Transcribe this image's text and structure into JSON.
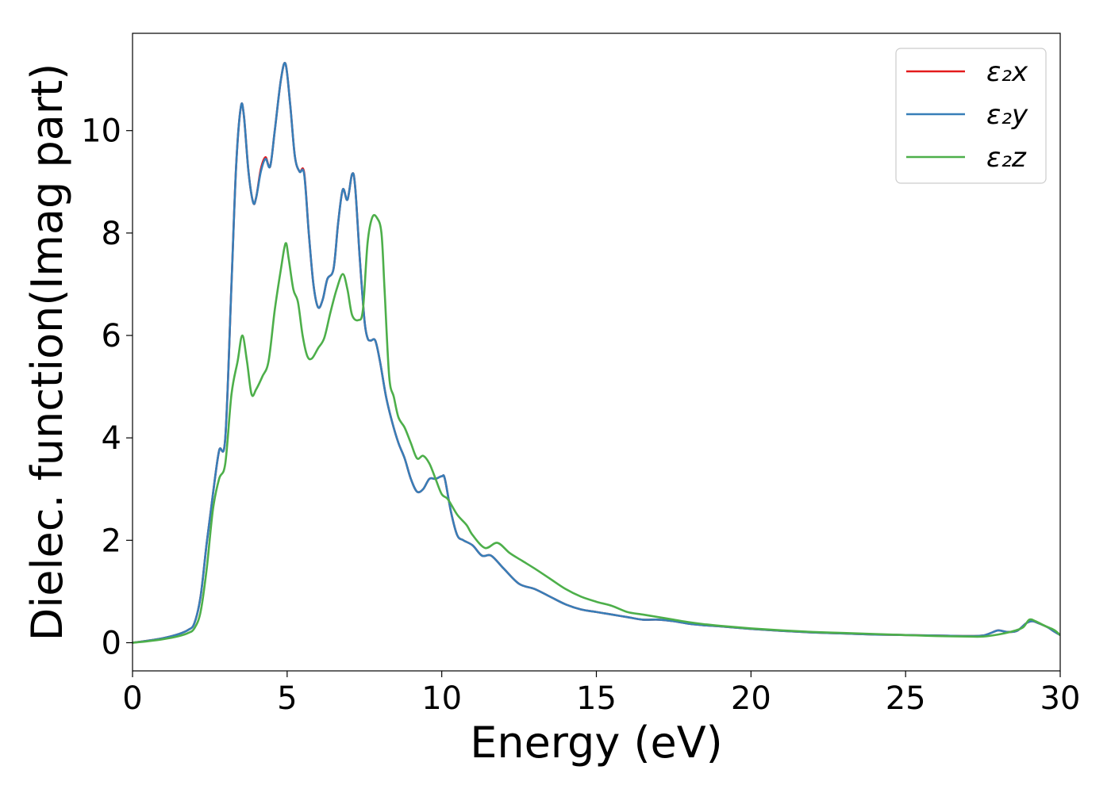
{
  "chart_data": {
    "type": "line",
    "title": "",
    "xlabel": "Energy (eV)",
    "ylabel": "Dielec. function(Imag part)",
    "xlim": [
      0,
      30
    ],
    "ylim": [
      -0.55,
      11.9
    ],
    "xticks": [
      0,
      5,
      10,
      15,
      20,
      25,
      30
    ],
    "yticks": [
      0,
      2,
      4,
      6,
      8,
      10
    ],
    "grid": false,
    "legend_position": "upper right",
    "series": [
      {
        "name": "ε₂x",
        "color": "#e41a1c",
        "x": [
          0,
          0.5,
          1,
          1.5,
          1.8,
          2.0,
          2.2,
          2.4,
          2.6,
          2.8,
          3.0,
          3.2,
          3.35,
          3.5,
          3.6,
          3.75,
          3.9,
          4.0,
          4.15,
          4.3,
          4.45,
          4.6,
          4.8,
          4.95,
          5.1,
          5.25,
          5.4,
          5.55,
          5.7,
          5.85,
          6.0,
          6.15,
          6.3,
          6.5,
          6.65,
          6.8,
          6.95,
          7.1,
          7.2,
          7.35,
          7.5,
          7.6,
          7.7,
          7.85,
          8.0,
          8.2,
          8.4,
          8.6,
          8.8,
          9.0,
          9.2,
          9.4,
          9.6,
          9.8,
          10.0,
          10.1,
          10.3,
          10.5,
          10.7,
          11.0,
          11.3,
          11.6,
          12.0,
          12.5,
          13.0,
          13.5,
          14.0,
          14.5,
          15.0,
          15.5,
          16.0,
          16.5,
          17.0,
          17.5,
          18.0,
          18.5,
          19.0,
          20.0,
          21.0,
          22.0,
          23.0,
          24.0,
          25.0,
          26.0,
          27.0,
          27.5,
          27.8,
          28.0,
          28.3,
          28.6,
          28.9,
          29.1,
          29.3,
          29.6,
          29.8,
          30.0
        ],
        "values": [
          0.0,
          0.04,
          0.09,
          0.17,
          0.25,
          0.38,
          0.9,
          1.95,
          2.9,
          3.75,
          4.0,
          7.0,
          9.3,
          10.45,
          10.3,
          9.2,
          8.6,
          8.7,
          9.25,
          9.48,
          9.3,
          10.0,
          11.0,
          11.3,
          10.5,
          9.5,
          9.2,
          9.18,
          8.0,
          7.0,
          6.55,
          6.7,
          7.1,
          7.3,
          8.2,
          8.85,
          8.65,
          9.15,
          8.9,
          7.5,
          6.3,
          5.95,
          5.9,
          5.9,
          5.5,
          4.8,
          4.3,
          3.9,
          3.6,
          3.2,
          2.95,
          3.0,
          3.2,
          3.2,
          3.25,
          3.2,
          2.55,
          2.1,
          2.0,
          1.9,
          1.7,
          1.7,
          1.45,
          1.15,
          1.05,
          0.9,
          0.75,
          0.65,
          0.6,
          0.55,
          0.5,
          0.45,
          0.45,
          0.42,
          0.37,
          0.34,
          0.32,
          0.27,
          0.23,
          0.2,
          0.18,
          0.16,
          0.15,
          0.14,
          0.13,
          0.14,
          0.2,
          0.24,
          0.21,
          0.23,
          0.38,
          0.42,
          0.38,
          0.3,
          0.22,
          0.15
        ]
      },
      {
        "name": "ε₂y",
        "color": "#377eb8",
        "x": [
          0,
          0.5,
          1,
          1.5,
          1.8,
          2.0,
          2.2,
          2.4,
          2.6,
          2.8,
          3.0,
          3.2,
          3.35,
          3.5,
          3.6,
          3.75,
          3.9,
          4.0,
          4.15,
          4.3,
          4.45,
          4.6,
          4.8,
          4.95,
          5.1,
          5.25,
          5.4,
          5.55,
          5.7,
          5.85,
          6.0,
          6.15,
          6.3,
          6.5,
          6.65,
          6.8,
          6.95,
          7.1,
          7.2,
          7.35,
          7.5,
          7.6,
          7.7,
          7.85,
          8.0,
          8.2,
          8.4,
          8.6,
          8.8,
          9.0,
          9.2,
          9.4,
          9.6,
          9.8,
          10.0,
          10.1,
          10.3,
          10.5,
          10.7,
          11.0,
          11.3,
          11.6,
          12.0,
          12.5,
          13.0,
          13.5,
          14.0,
          14.5,
          15.0,
          15.5,
          16.0,
          16.5,
          17.0,
          17.5,
          18.0,
          18.5,
          19.0,
          20.0,
          21.0,
          22.0,
          23.0,
          24.0,
          25.0,
          26.0,
          27.0,
          27.5,
          27.8,
          28.0,
          28.3,
          28.6,
          28.9,
          29.1,
          29.3,
          29.6,
          29.8,
          30.0
        ],
        "values": [
          0.0,
          0.04,
          0.09,
          0.17,
          0.25,
          0.38,
          0.9,
          1.95,
          2.9,
          3.75,
          4.0,
          7.0,
          9.3,
          10.45,
          10.3,
          9.2,
          8.6,
          8.7,
          9.2,
          9.45,
          9.3,
          10.0,
          11.0,
          11.3,
          10.5,
          9.5,
          9.2,
          9.15,
          8.0,
          7.0,
          6.55,
          6.7,
          7.1,
          7.3,
          8.2,
          8.85,
          8.65,
          9.15,
          8.9,
          7.5,
          6.3,
          5.95,
          5.9,
          5.9,
          5.5,
          4.8,
          4.3,
          3.9,
          3.6,
          3.2,
          2.95,
          3.0,
          3.2,
          3.2,
          3.25,
          3.2,
          2.55,
          2.1,
          2.0,
          1.9,
          1.7,
          1.7,
          1.45,
          1.15,
          1.05,
          0.9,
          0.75,
          0.65,
          0.6,
          0.55,
          0.5,
          0.45,
          0.45,
          0.42,
          0.37,
          0.34,
          0.32,
          0.27,
          0.23,
          0.2,
          0.18,
          0.16,
          0.15,
          0.14,
          0.13,
          0.14,
          0.2,
          0.24,
          0.21,
          0.23,
          0.38,
          0.42,
          0.38,
          0.3,
          0.22,
          0.15
        ]
      },
      {
        "name": "ε₂z",
        "color": "#4daf4a",
        "x": [
          0,
          0.5,
          1,
          1.5,
          1.8,
          2.0,
          2.2,
          2.4,
          2.6,
          2.8,
          3.0,
          3.2,
          3.4,
          3.55,
          3.7,
          3.85,
          4.0,
          4.2,
          4.4,
          4.6,
          4.8,
          4.95,
          5.05,
          5.2,
          5.35,
          5.5,
          5.65,
          5.8,
          6.0,
          6.2,
          6.4,
          6.6,
          6.8,
          6.95,
          7.1,
          7.3,
          7.45,
          7.6,
          7.75,
          7.9,
          8.05,
          8.15,
          8.3,
          8.45,
          8.6,
          8.8,
          9.0,
          9.2,
          9.4,
          9.6,
          9.8,
          10.0,
          10.2,
          10.5,
          10.8,
          11.0,
          11.4,
          11.8,
          12.2,
          12.6,
          13.0,
          13.5,
          14.0,
          14.5,
          15.0,
          15.5,
          16.0,
          16.5,
          17.0,
          17.5,
          18.0,
          18.5,
          19.0,
          20.0,
          21.0,
          22.0,
          23.0,
          24.0,
          25.0,
          26.0,
          27.0,
          27.5,
          28.0,
          28.5,
          28.8,
          29.0,
          29.2,
          29.5,
          29.8,
          30.0
        ],
        "values": [
          0.0,
          0.03,
          0.07,
          0.13,
          0.19,
          0.28,
          0.6,
          1.45,
          2.6,
          3.2,
          3.5,
          4.85,
          5.5,
          6.0,
          5.5,
          4.85,
          4.95,
          5.2,
          5.5,
          6.5,
          7.3,
          7.8,
          7.5,
          6.9,
          6.65,
          6.0,
          5.6,
          5.55,
          5.75,
          5.95,
          6.45,
          6.9,
          7.2,
          6.9,
          6.4,
          6.3,
          6.5,
          7.8,
          8.3,
          8.3,
          8.0,
          6.9,
          5.2,
          4.8,
          4.4,
          4.2,
          3.9,
          3.6,
          3.65,
          3.5,
          3.2,
          2.9,
          2.8,
          2.5,
          2.3,
          2.1,
          1.85,
          1.95,
          1.75,
          1.6,
          1.45,
          1.25,
          1.05,
          0.9,
          0.8,
          0.72,
          0.6,
          0.55,
          0.5,
          0.45,
          0.4,
          0.36,
          0.33,
          0.28,
          0.24,
          0.21,
          0.19,
          0.17,
          0.15,
          0.13,
          0.12,
          0.12,
          0.16,
          0.23,
          0.3,
          0.45,
          0.42,
          0.33,
          0.25,
          0.15
        ]
      }
    ]
  }
}
